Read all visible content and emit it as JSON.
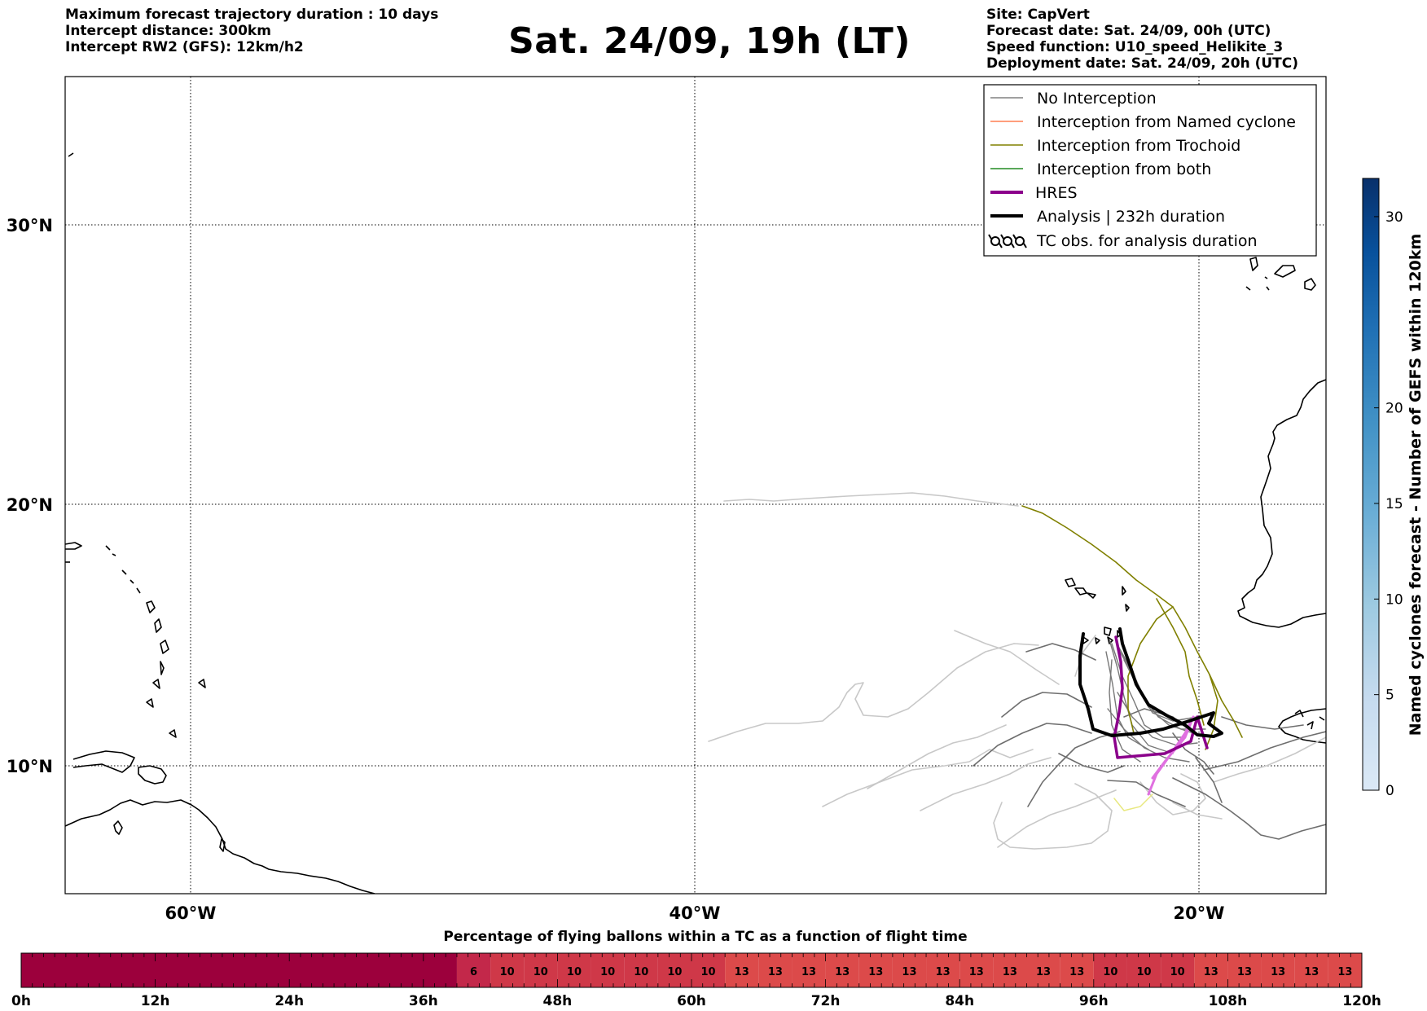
{
  "header": {
    "left": [
      "Maximum forecast trajectory duration : 10 days",
      "Intercept distance: 300km",
      "Intercept RW2 (GFS):  12km/h2"
    ],
    "title": "Sat. 24/09, 19h (LT)",
    "right": [
      "Site: CapVert",
      "Forecast date: Sat. 24/09, 00h (UTC)",
      "Speed function: U10_speed_Helikite_3",
      "Deployment date: Sat. 24/09, 20h (UTC)"
    ]
  },
  "map": {
    "lat_labels": [
      "30°N",
      "20°N",
      "10°N"
    ],
    "lon_labels": [
      "60°W",
      "40°W",
      "20°W"
    ],
    "lon_range": [
      -65,
      -15
    ],
    "lat_range": [
      5.3,
      35
    ],
    "grid": "dotted",
    "legend": {
      "placement": "top-right",
      "entries": [
        {
          "label": "No Interception",
          "color": "#808080",
          "style": "thin"
        },
        {
          "label": "Interception from Named cyclone",
          "color": "#ff7f50",
          "style": "thin"
        },
        {
          "label": "Interception from Trochoid",
          "color": "#808000",
          "style": "thin"
        },
        {
          "label": "Interception from both",
          "color": "#228b22",
          "style": "thin"
        },
        {
          "label": "HRES",
          "color": "#8b008b",
          "style": "thick"
        },
        {
          "label": "Analysis | 232h duration",
          "color": "#000000",
          "style": "thick"
        },
        {
          "label": "TC obs. for analysis duration",
          "color": "#000000",
          "style": "tc-symbol"
        }
      ]
    },
    "colorbar": {
      "label": "Named cyclones forecast - Number of GEFS within 120km",
      "ticks": [
        "0",
        "5",
        "10",
        "15",
        "20",
        "30"
      ],
      "tick_values": [
        0,
        5,
        10,
        15,
        20,
        30
      ],
      "range": [
        0,
        32
      ],
      "colors": [
        "#dbe9f6",
        "#c6dbef",
        "#9ecae1",
        "#6baed6",
        "#4292c6",
        "#2171b5",
        "#08519c",
        "#08306b"
      ]
    }
  },
  "bottom_bar": {
    "title": "Percentage of flying ballons within a TC as a function of flight time",
    "tick_labels": [
      "0h",
      "12h",
      "24h",
      "36h",
      "48h",
      "60h",
      "72h",
      "84h",
      "96h",
      "108h",
      "120h"
    ],
    "max_hours": 120,
    "cell_hours": 3,
    "low_hours": 39,
    "low_color": "#9c003c",
    "cells": [
      {
        "value": "6",
        "color": "#c3284a"
      },
      {
        "value": "10",
        "color": "#cf3848"
      },
      {
        "value": "10",
        "color": "#cf3848"
      },
      {
        "value": "10",
        "color": "#cf3848"
      },
      {
        "value": "10",
        "color": "#cf3848"
      },
      {
        "value": "10",
        "color": "#cf3848"
      },
      {
        "value": "10",
        "color": "#cf3848"
      },
      {
        "value": "10",
        "color": "#cf3848"
      },
      {
        "value": "13",
        "color": "#dc4a4a"
      },
      {
        "value": "13",
        "color": "#dc4a4a"
      },
      {
        "value": "13",
        "color": "#dc4a4a"
      },
      {
        "value": "13",
        "color": "#dc4a4a"
      },
      {
        "value": "13",
        "color": "#dc4a4a"
      },
      {
        "value": "13",
        "color": "#dc4a4a"
      },
      {
        "value": "13",
        "color": "#dc4a4a"
      },
      {
        "value": "13",
        "color": "#dc4a4a"
      },
      {
        "value": "13",
        "color": "#dc4a4a"
      },
      {
        "value": "13",
        "color": "#dc4a4a"
      },
      {
        "value": "13",
        "color": "#dc4a4a"
      },
      {
        "value": "10",
        "color": "#cf3848"
      },
      {
        "value": "10",
        "color": "#cf3848"
      },
      {
        "value": "10",
        "color": "#cf3848"
      },
      {
        "value": "13",
        "color": "#dc4a4a"
      },
      {
        "value": "13",
        "color": "#dc4a4a"
      },
      {
        "value": "13",
        "color": "#dc4a4a"
      },
      {
        "value": "13",
        "color": "#dc4a4a"
      },
      {
        "value": "13",
        "color": "#dc4a4a"
      }
    ]
  }
}
